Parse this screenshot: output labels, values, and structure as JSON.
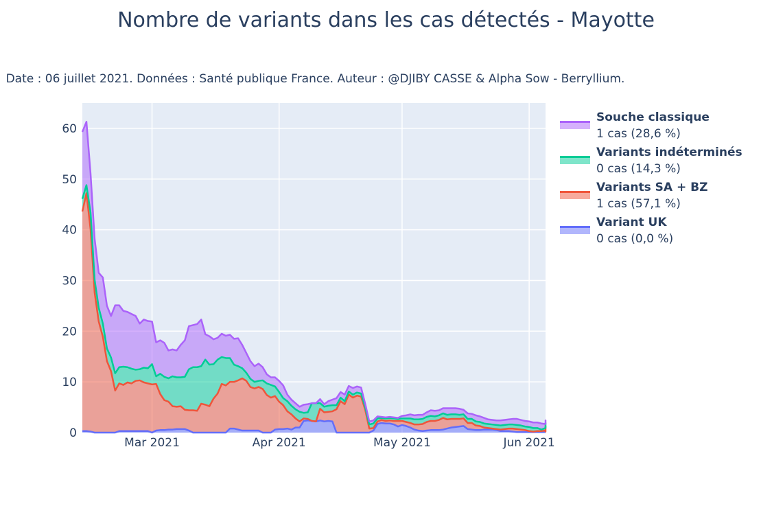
{
  "chart_data": {
    "type": "area",
    "title": "Nombre de variants dans les cas détectés - Mayotte",
    "subtitle": "Date : 06 juillet 2021. Données : Santé publique France. Auteur : @DJIBY CASSE & Alpha Sow - Berryllium.",
    "stacked": true,
    "xlabel": "",
    "ylabel": "",
    "x_start": "2021-02-12",
    "x_range": [
      "2021-02-12",
      "2021-06-05"
    ],
    "ylim": [
      0,
      65
    ],
    "y_ticks": [
      0,
      10,
      20,
      30,
      40,
      50,
      60
    ],
    "x_ticks": [
      {
        "date": "2021-03-01",
        "label": "Mar 2021"
      },
      {
        "date": "2021-04-01",
        "label": "Apr 2021"
      },
      {
        "date": "2021-05-01",
        "label": "May 2021"
      },
      {
        "date": "2021-06-01",
        "label": "Jun 2021"
      }
    ],
    "grid": true,
    "legend_position": "right",
    "background": "#e5ecf6",
    "series": [
      {
        "name": "Variant UK",
        "legend_detail": "0 cas (0,0 %)",
        "color": "#636efa",
        "values": [
          0.3,
          0.3,
          0.2,
          0,
          0,
          0,
          0,
          0,
          0,
          0.3,
          0.3,
          0.3,
          0.3,
          0.3,
          0.3,
          0.3,
          0.3,
          0,
          0.4,
          0.5,
          0.5,
          0.6,
          0.6,
          0.7,
          0.7,
          0.7,
          0.4,
          0,
          0,
          0,
          0,
          0,
          0,
          0,
          0,
          0,
          0.8,
          0.8,
          0.6,
          0.4,
          0.4,
          0.4,
          0.4,
          0.4,
          0,
          0,
          0,
          0.6,
          0.7,
          0.7,
          0.8,
          0.6,
          1.0,
          1.0,
          2.3,
          2.4,
          2.3,
          2.2,
          2.4,
          2.2,
          2.3,
          2.2,
          0,
          0,
          0,
          0,
          0,
          0,
          0,
          0,
          0,
          0.4,
          1.7,
          1.9,
          1.8,
          1.8,
          1.6,
          1.2,
          1.5,
          1.3,
          1.0,
          0.6,
          0.4,
          0.3,
          0.4,
          0.5,
          0.5,
          0.5,
          0.6,
          0.8,
          1.0,
          1.1,
          1.2,
          1.3,
          0.7,
          0.6,
          0.5,
          0.5,
          0.6,
          0.6,
          0.6,
          0.5,
          0.3,
          0.3,
          0.3,
          0.2,
          0.1,
          0.1,
          0.1,
          0.1,
          0.1,
          0.1,
          0.1,
          0.1,
          0.1,
          0.1,
          0.1,
          0.1
        ]
      },
      {
        "name": "Variants SA + BZ",
        "legend_detail": "1 cas (57,1 %)",
        "color": "#ef553b",
        "values": [
          43.3,
          46.9,
          39.9,
          27.6,
          21.9,
          18.9,
          14.1,
          12.1,
          8.3,
          9.4,
          9.1,
          9.6,
          9.4,
          9.9,
          10.0,
          9.6,
          9.4,
          9.5,
          9.2,
          7.1,
          5.9,
          5.5,
          4.6,
          4.4,
          4.5,
          3.8,
          4.0,
          4.4,
          4.3,
          5.7,
          5.5,
          5.2,
          6.7,
          7.7,
          9.6,
          9.3,
          9.2,
          9.2,
          9.7,
          10.3,
          9.8,
          8.6,
          8.3,
          8.6,
          8.6,
          7.4,
          6.9,
          6.6,
          5.4,
          4.7,
          3.4,
          3.0,
          1.8,
          1.2,
          0.5,
          0.3,
          0,
          0,
          2.3,
          1.8,
          1.8,
          2.0,
          4.6,
          6.2,
          5.6,
          7.5,
          6.9,
          7.3,
          7.1,
          4.5,
          0.8,
          0.5,
          0.5,
          0.6,
          0.5,
          0.6,
          0.7,
          1.1,
          0.8,
          0.8,
          0.9,
          1.0,
          1.2,
          1.4,
          1.7,
          1.8,
          1.8,
          2.0,
          2.3,
          1.8,
          1.7,
          1.6,
          1.5,
          1.5,
          1.2,
          1.3,
          0.9,
          0.8,
          0.4,
          0.3,
          0.2,
          0.2,
          0.3,
          0.4,
          0.5,
          0.6,
          0.6,
          0.5,
          0.4,
          0.2,
          0.1,
          0.2,
          0.2,
          0.3,
          0.4,
          0.1,
          1.2,
          1.1
        ]
      },
      {
        "name": "Variants indéterminés",
        "legend_detail": "0 cas (14,3 %)",
        "color": "#00cc96",
        "values": [
          2.5,
          1.6,
          3.3,
          2.5,
          2.7,
          2.6,
          2.5,
          2.7,
          3.4,
          3.2,
          3.6,
          3.0,
          2.9,
          2.2,
          2.2,
          2.9,
          3.0,
          4.0,
          1.5,
          4.0,
          4.6,
          4.6,
          5.9,
          5.8,
          5.7,
          6.5,
          8.1,
          8.5,
          8.6,
          7.4,
          8.9,
          8.2,
          6.8,
          6.7,
          5.3,
          5.4,
          4.7,
          3.4,
          2.8,
          2.0,
          1.6,
          1.6,
          1.3,
          1.2,
          1.7,
          2.3,
          2.5,
          1.9,
          1.9,
          1.4,
          2.0,
          1.7,
          1.8,
          1.9,
          1.1,
          1.3,
          3.5,
          3.6,
          1.1,
          1.1,
          1.2,
          1.2,
          0.8,
          0.7,
          0.6,
          0.6,
          0.6,
          0.6,
          0.6,
          0.5,
          0.8,
          0.9,
          0.6,
          0.4,
          0.5,
          0.5,
          0.5,
          0.4,
          0.5,
          0.7,
          0.9,
          1.0,
          1.0,
          1.0,
          1.0,
          1.0,
          0.9,
          0.9,
          0.9,
          0.9,
          0.9,
          0.9,
          0.8,
          0.8,
          0.8,
          0.8,
          0.8,
          0.8,
          0.8,
          0.8,
          0.8,
          0.8,
          0.8,
          0.8,
          0.8,
          0.8,
          0.8,
          0.8,
          0.7,
          0.8,
          0.7,
          0.6,
          0.3,
          0.5,
          0.6,
          0.7,
          0.6,
          0.6
        ]
      },
      {
        "name": "Souche classique",
        "legend_detail": "1 cas (28,6 %)",
        "color": "#ab63fa",
        "values": [
          13.2,
          12.5,
          7.7,
          8.1,
          6.9,
          9.1,
          8.4,
          8.2,
          13.4,
          12.2,
          11.0,
          10.9,
          10.8,
          10.6,
          9.0,
          9.5,
          9.3,
          8.4,
          6.7,
          6.6,
          6.7,
          5.5,
          5.3,
          5.3,
          6.4,
          7.2,
          8.5,
          8.3,
          8.5,
          9.2,
          5.0,
          5.6,
          4.9,
          4.3,
          4.6,
          4.4,
          4.6,
          5.1,
          5.5,
          4.6,
          3.9,
          3.5,
          3.1,
          3.4,
          2.6,
          1.8,
          1.5,
          1.8,
          2.2,
          2.5,
          1.3,
          1.2,
          1.2,
          1.0,
          1.6,
          1.6,
          0,
          0,
          0.8,
          0.5,
          0.9,
          1.1,
          1.4,
          1.1,
          1.3,
          1.1,
          1.3,
          1.2,
          1.2,
          0.7,
          0.6,
          0.6,
          0.4,
          0.2,
          0.2,
          0.2,
          0.2,
          0.2,
          0.5,
          0.6,
          0.8,
          0.8,
          0.9,
          0.8,
          0.9,
          1.1,
          1.1,
          1.0,
          1.0,
          1.3,
          1.2,
          1.2,
          1.2,
          0.9,
          1.1,
          1.0,
          1.2,
          1.1,
          1.1,
          0.9,
          0.9,
          0.9,
          1.0,
          1.0,
          1.0,
          1.1,
          1.2,
          1.1,
          1.1,
          1.1,
          1.1,
          1.1,
          1.2,
          0.8,
          0.8,
          1.1,
          0.5,
          0.5
        ]
      }
    ],
    "legend_order": [
      "Souche classique",
      "Variants indéterminés",
      "Variants SA + BZ",
      "Variant UK"
    ]
  }
}
